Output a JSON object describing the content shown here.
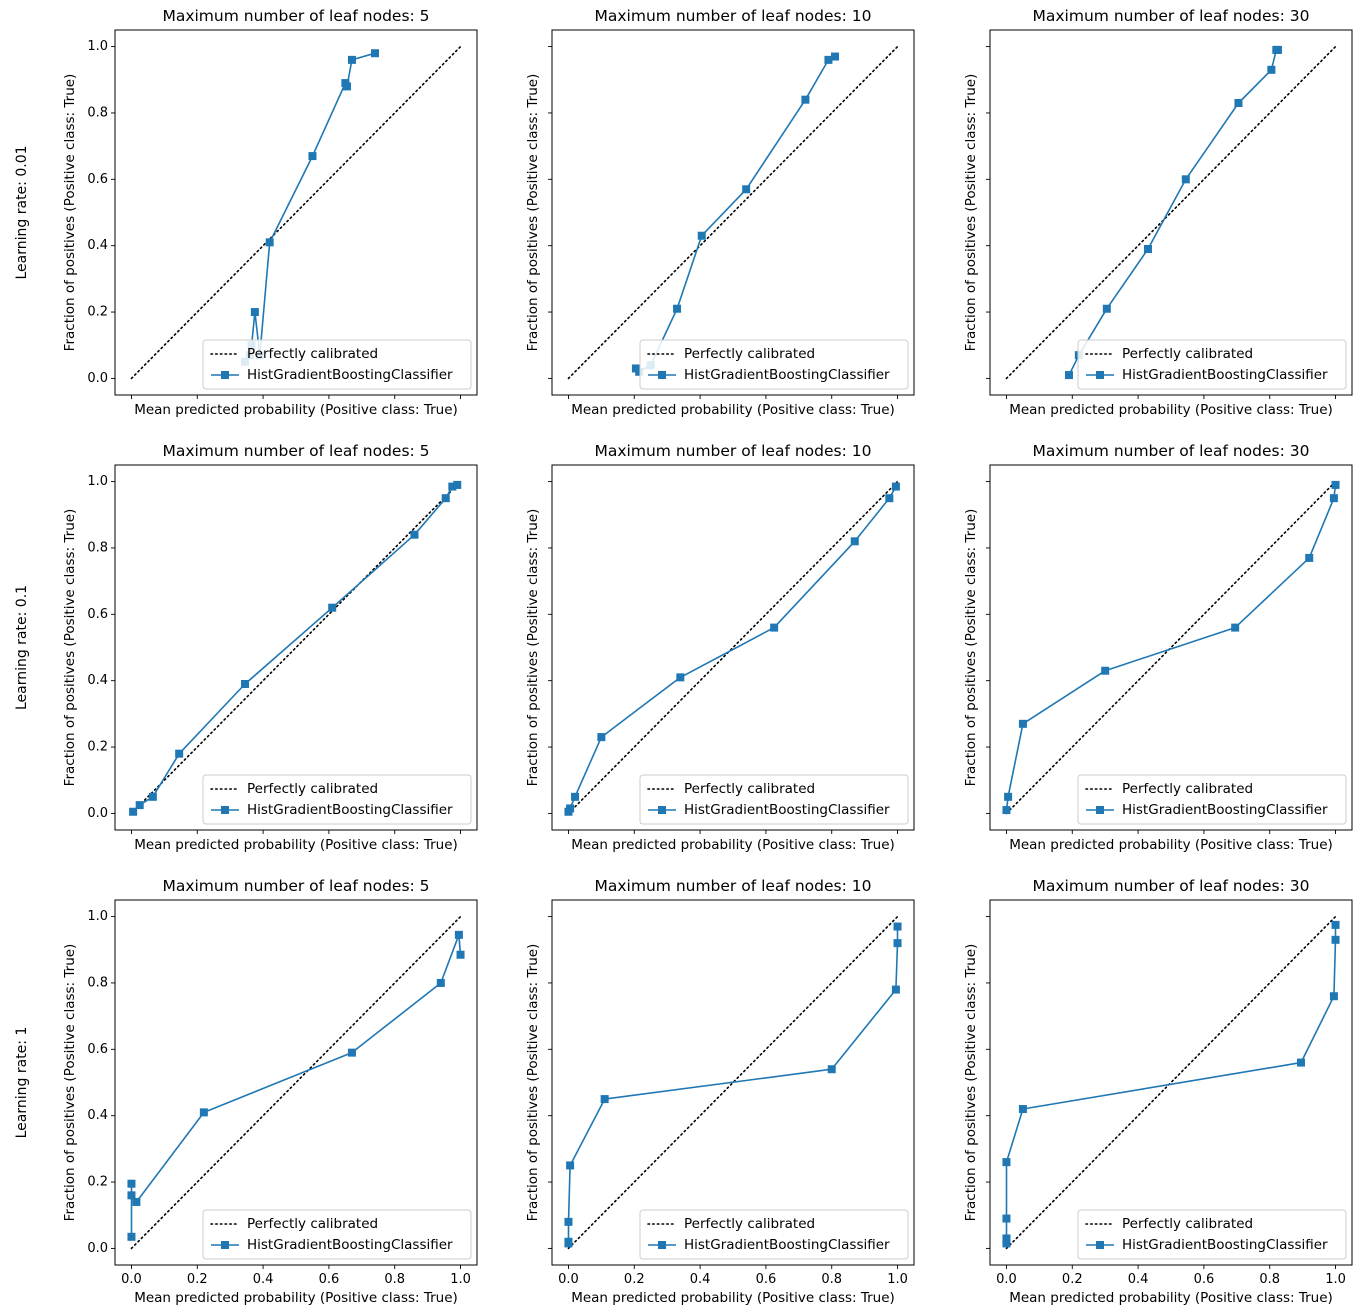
{
  "figure": {
    "row_labels": [
      "Learning rate: 0.01",
      "Learning rate: 0.1",
      "Learning rate: 1"
    ],
    "line_color": "#1f77b4",
    "diagonal_color": "#000000"
  },
  "chart_data": [
    {
      "type": "line",
      "title": "Maximum number of leaf nodes: 5",
      "xlabel": "Mean predicted probability (Positive class: True)",
      "ylabel": "Fraction of positives (Positive class: True)",
      "xlim": [
        -0.05,
        1.05
      ],
      "ylim": [
        -0.05,
        1.05
      ],
      "xticks": [],
      "yticks": [
        "0.0",
        "0.2",
        "0.4",
        "0.6",
        "0.8",
        "1.0"
      ],
      "legend": {
        "position": "lower-right",
        "entries": [
          "Perfectly calibrated",
          "HistGradientBoostingClassifier"
        ]
      },
      "series": [
        {
          "name": "HistGradientBoostingClassifier",
          "x": [
            0.345,
            0.36,
            0.365,
            0.375,
            0.39,
            0.42,
            0.55,
            0.65,
            0.655,
            0.67,
            0.74
          ],
          "y": [
            0.05,
            0.07,
            0.1,
            0.2,
            0.07,
            0.41,
            0.67,
            0.89,
            0.88,
            0.96,
            0.98
          ]
        }
      ]
    },
    {
      "type": "line",
      "title": "Maximum number of leaf nodes: 10",
      "xlabel": "Mean predicted probability (Positive class: True)",
      "ylabel": "Fraction of positives (Positive class: True)",
      "xlim": [
        -0.05,
        1.05
      ],
      "ylim": [
        -0.05,
        1.05
      ],
      "xticks": [],
      "yticks": [],
      "legend": {
        "position": "lower-right",
        "entries": [
          "Perfectly calibrated",
          "HistGradientBoostingClassifier"
        ]
      },
      "series": [
        {
          "name": "HistGradientBoostingClassifier",
          "x": [
            0.205,
            0.215,
            0.25,
            0.33,
            0.405,
            0.54,
            0.72,
            0.79,
            0.81
          ],
          "y": [
            0.03,
            0.02,
            0.04,
            0.21,
            0.43,
            0.57,
            0.84,
            0.96,
            0.97
          ]
        }
      ]
    },
    {
      "type": "line",
      "title": "Maximum number of leaf nodes: 30",
      "xlabel": "Mean predicted probability (Positive class: True)",
      "ylabel": "Fraction of positives (Positive class: True)",
      "xlim": [
        -0.05,
        1.05
      ],
      "ylim": [
        -0.05,
        1.05
      ],
      "xticks": [],
      "yticks": [],
      "legend": {
        "position": "lower-right",
        "entries": [
          "Perfectly calibrated",
          "HistGradientBoostingClassifier"
        ]
      },
      "series": [
        {
          "name": "HistGradientBoostingClassifier",
          "x": [
            0.19,
            0.22,
            0.305,
            0.43,
            0.545,
            0.705,
            0.805,
            0.82,
            0.825
          ],
          "y": [
            0.01,
            0.07,
            0.21,
            0.39,
            0.6,
            0.83,
            0.93,
            0.99,
            0.99
          ]
        }
      ]
    },
    {
      "type": "line",
      "title": "Maximum number of leaf nodes: 5",
      "xlabel": "Mean predicted probability (Positive class: True)",
      "ylabel": "Fraction of positives (Positive class: True)",
      "xlim": [
        -0.05,
        1.05
      ],
      "ylim": [
        -0.05,
        1.05
      ],
      "xticks": [],
      "yticks": [
        "0.0",
        "0.2",
        "0.4",
        "0.6",
        "0.8",
        "1.0"
      ],
      "legend": {
        "position": "lower-right",
        "entries": [
          "Perfectly calibrated",
          "HistGradientBoostingClassifier"
        ]
      },
      "series": [
        {
          "name": "HistGradientBoostingClassifier",
          "x": [
            0.005,
            0.025,
            0.065,
            0.145,
            0.345,
            0.61,
            0.86,
            0.955,
            0.975,
            0.99
          ],
          "y": [
            0.005,
            0.025,
            0.05,
            0.18,
            0.39,
            0.62,
            0.84,
            0.95,
            0.985,
            0.99
          ]
        }
      ]
    },
    {
      "type": "line",
      "title": "Maximum number of leaf nodes: 10",
      "xlabel": "Mean predicted probability (Positive class: True)",
      "ylabel": "Fraction of positives (Positive class: True)",
      "xlim": [
        -0.05,
        1.05
      ],
      "ylim": [
        -0.05,
        1.05
      ],
      "xticks": [],
      "yticks": [],
      "legend": {
        "position": "lower-right",
        "entries": [
          "Perfectly calibrated",
          "HistGradientBoostingClassifier"
        ]
      },
      "series": [
        {
          "name": "HistGradientBoostingClassifier",
          "x": [
            0.0,
            0.005,
            0.02,
            0.1,
            0.34,
            0.625,
            0.87,
            0.975,
            0.995
          ],
          "y": [
            0.005,
            0.015,
            0.05,
            0.23,
            0.41,
            0.56,
            0.82,
            0.95,
            0.985
          ]
        }
      ]
    },
    {
      "type": "line",
      "title": "Maximum number of leaf nodes: 30",
      "xlabel": "Mean predicted probability (Positive class: True)",
      "ylabel": "Fraction of positives (Positive class: True)",
      "xlim": [
        -0.05,
        1.05
      ],
      "ylim": [
        -0.05,
        1.05
      ],
      "xticks": [],
      "yticks": [],
      "legend": {
        "position": "lower-right",
        "entries": [
          "Perfectly calibrated",
          "HistGradientBoostingClassifier"
        ]
      },
      "series": [
        {
          "name": "HistGradientBoostingClassifier",
          "x": [
            0.0,
            0.005,
            0.05,
            0.3,
            0.695,
            0.92,
            0.995,
            1.0
          ],
          "y": [
            0.01,
            0.05,
            0.27,
            0.43,
            0.56,
            0.77,
            0.95,
            0.99
          ]
        }
      ]
    },
    {
      "type": "line",
      "title": "Maximum number of leaf nodes: 5",
      "xlabel": "Mean predicted probability (Positive class: True)",
      "ylabel": "Fraction of positives (Positive class: True)",
      "xlim": [
        -0.05,
        1.05
      ],
      "ylim": [
        -0.05,
        1.05
      ],
      "xticks": [
        "0.0",
        "0.2",
        "0.4",
        "0.6",
        "0.8",
        "1.0"
      ],
      "yticks": [
        "0.0",
        "0.2",
        "0.4",
        "0.6",
        "0.8",
        "1.0"
      ],
      "legend": {
        "position": "lower-right",
        "entries": [
          "Perfectly calibrated",
          "HistGradientBoostingClassifier"
        ]
      },
      "series": [
        {
          "name": "HistGradientBoostingClassifier",
          "x": [
            0.0,
            0.0,
            0.0,
            0.015,
            0.22,
            0.67,
            0.94,
            0.995,
            1.0
          ],
          "y": [
            0.035,
            0.195,
            0.16,
            0.14,
            0.41,
            0.59,
            0.8,
            0.945,
            0.885
          ]
        }
      ]
    },
    {
      "type": "line",
      "title": "Maximum number of leaf nodes: 10",
      "xlabel": "Mean predicted probability (Positive class: True)",
      "ylabel": "Fraction of positives (Positive class: True)",
      "xlim": [
        -0.05,
        1.05
      ],
      "ylim": [
        -0.05,
        1.05
      ],
      "xticks": [
        "0.0",
        "0.2",
        "0.4",
        "0.6",
        "0.8",
        "1.0"
      ],
      "yticks": [],
      "legend": {
        "position": "lower-right",
        "entries": [
          "Perfectly calibrated",
          "HistGradientBoostingClassifier"
        ]
      },
      "series": [
        {
          "name": "HistGradientBoostingClassifier",
          "x": [
            0.0,
            0.0,
            0.0,
            0.005,
            0.11,
            0.8,
            0.995,
            1.0,
            1.0
          ],
          "y": [
            0.015,
            0.02,
            0.08,
            0.25,
            0.45,
            0.54,
            0.78,
            0.92,
            0.97
          ]
        }
      ]
    },
    {
      "type": "line",
      "title": "Maximum number of leaf nodes: 30",
      "xlabel": "Mean predicted probability (Positive class: True)",
      "ylabel": "Fraction of positives (Positive class: True)",
      "xlim": [
        -0.05,
        1.05
      ],
      "ylim": [
        -0.05,
        1.05
      ],
      "xticks": [
        "0.0",
        "0.2",
        "0.4",
        "0.6",
        "0.8",
        "1.0"
      ],
      "yticks": [],
      "legend": {
        "position": "lower-right",
        "entries": [
          "Perfectly calibrated",
          "HistGradientBoostingClassifier"
        ]
      },
      "series": [
        {
          "name": "HistGradientBoostingClassifier",
          "x": [
            0.0,
            0.0,
            0.0,
            0.0,
            0.05,
            0.895,
            0.995,
            1.0,
            1.0
          ],
          "y": [
            0.015,
            0.03,
            0.09,
            0.26,
            0.42,
            0.56,
            0.76,
            0.93,
            0.975
          ]
        }
      ]
    }
  ]
}
